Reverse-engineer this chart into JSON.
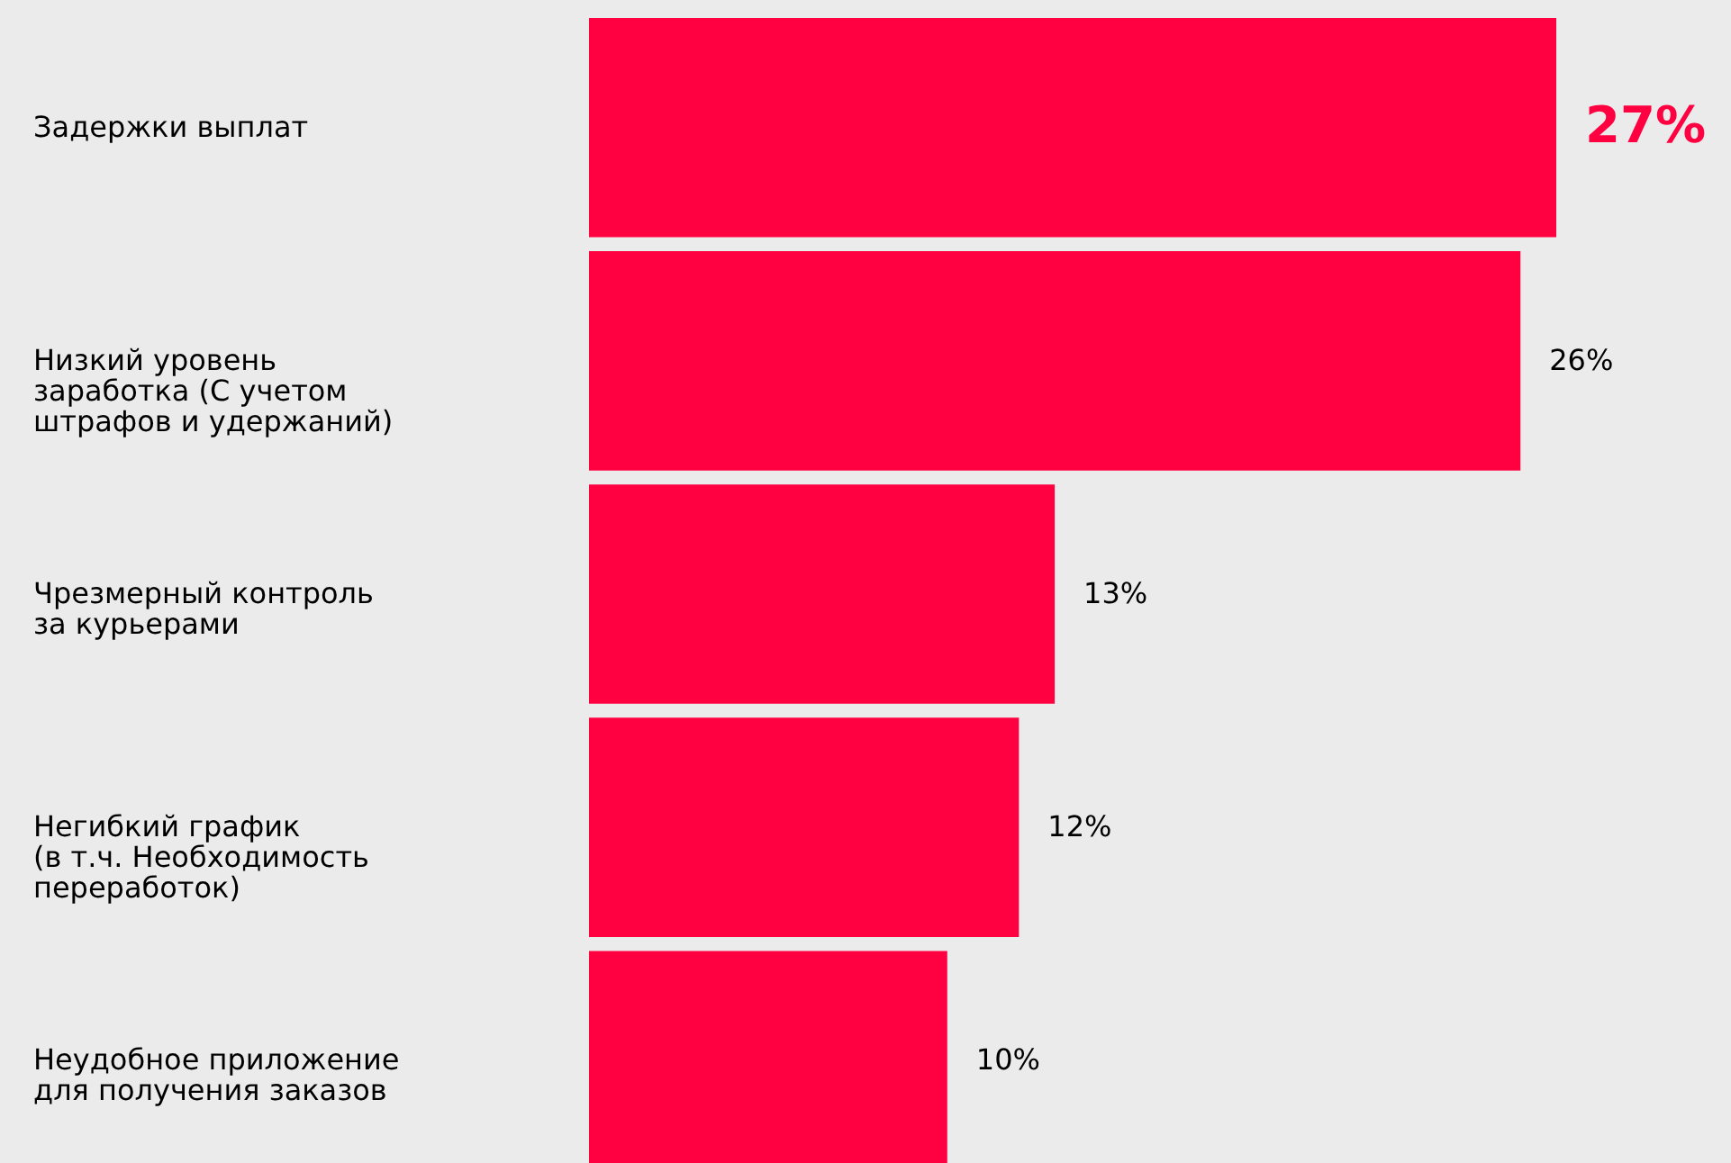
{
  "chart_data": {
    "type": "bar",
    "orientation": "horizontal",
    "categories": [
      "Задержки выплат",
      "Низкий уровень\nзаработка (С учетом\nштрафов и удержаний)",
      "Чрезмерный контроль\nза курьерами",
      "Негибкий график\n(в т.ч. Необходимость\nпереработок)",
      "Неудобное приложение\nдля получения заказов"
    ],
    "values": [
      27,
      26,
      13,
      12,
      10
    ],
    "value_labels": [
      "27%",
      "26%",
      "13%",
      "12%",
      "10%"
    ],
    "color": "#ff0040",
    "grid": false
  }
}
